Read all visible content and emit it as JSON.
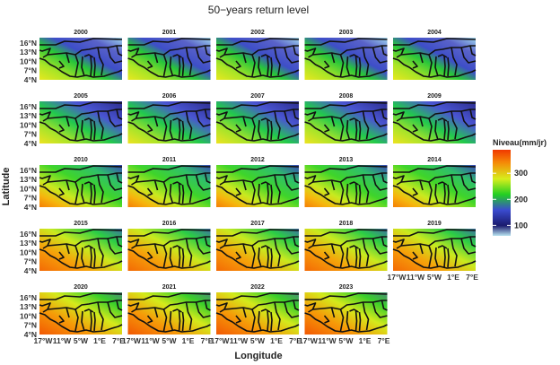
{
  "chart_data": {
    "type": "heatmap",
    "title": "50−years return level",
    "xlabel": "Longitude",
    "ylabel": "Latitude",
    "panels": [
      "2000",
      "2001",
      "2002",
      "2003",
      "2004",
      "2005",
      "2006",
      "2007",
      "2008",
      "2009",
      "2010",
      "2011",
      "2012",
      "2013",
      "2014",
      "2015",
      "2016",
      "2017",
      "2018",
      "2019",
      "2020",
      "2021",
      "2022",
      "2023"
    ],
    "x_ticks": [
      "17°W",
      "11°W",
      "5°W",
      "1°E",
      "7°E"
    ],
    "y_ticks": [
      "16°N",
      "13°N",
      "10°N",
      "7°N",
      "4°N"
    ],
    "legend": {
      "title": "Niveau(mm/jr)",
      "ticks": [
        100,
        200,
        300
      ],
      "range": [
        60,
        390
      ],
      "colors": [
        "#b8e3f0",
        "#1a1a6e",
        "#3a4bcf",
        "#22cf22",
        "#d6ee1c",
        "#f58a07",
        "#f03800"
      ]
    }
  }
}
